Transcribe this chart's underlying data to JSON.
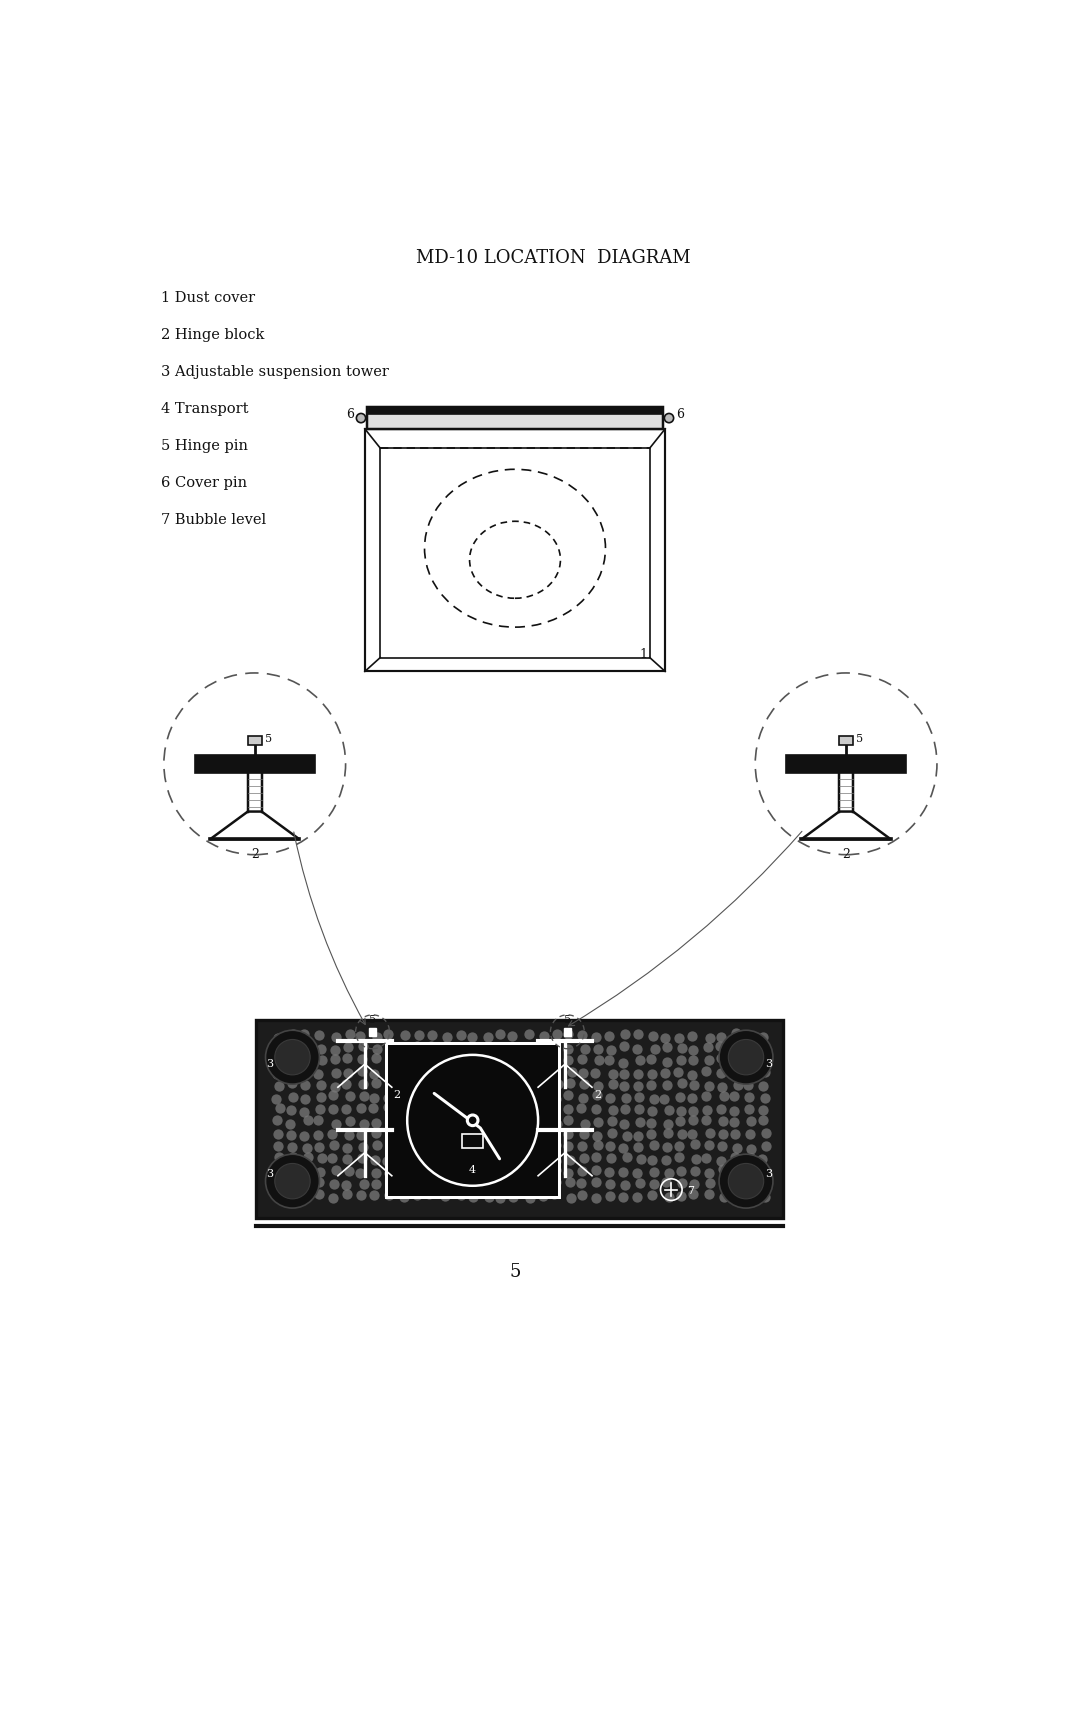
{
  "title": "MD-10 LOCATION  DIAGRAM",
  "background_color": "#ffffff",
  "text_color": "#1a1a1a",
  "legend_items": [
    "1 Dust cover",
    "2 Hinge block",
    "3 Adjustable suspension tower",
    "4 Transport",
    "5 Hinge pin",
    "6 Cover pin",
    "7 Bubble level"
  ],
  "page_number": "5",
  "title_fontsize": 13,
  "legend_fontsize": 10.5,
  "page_num_fontsize": 13
}
